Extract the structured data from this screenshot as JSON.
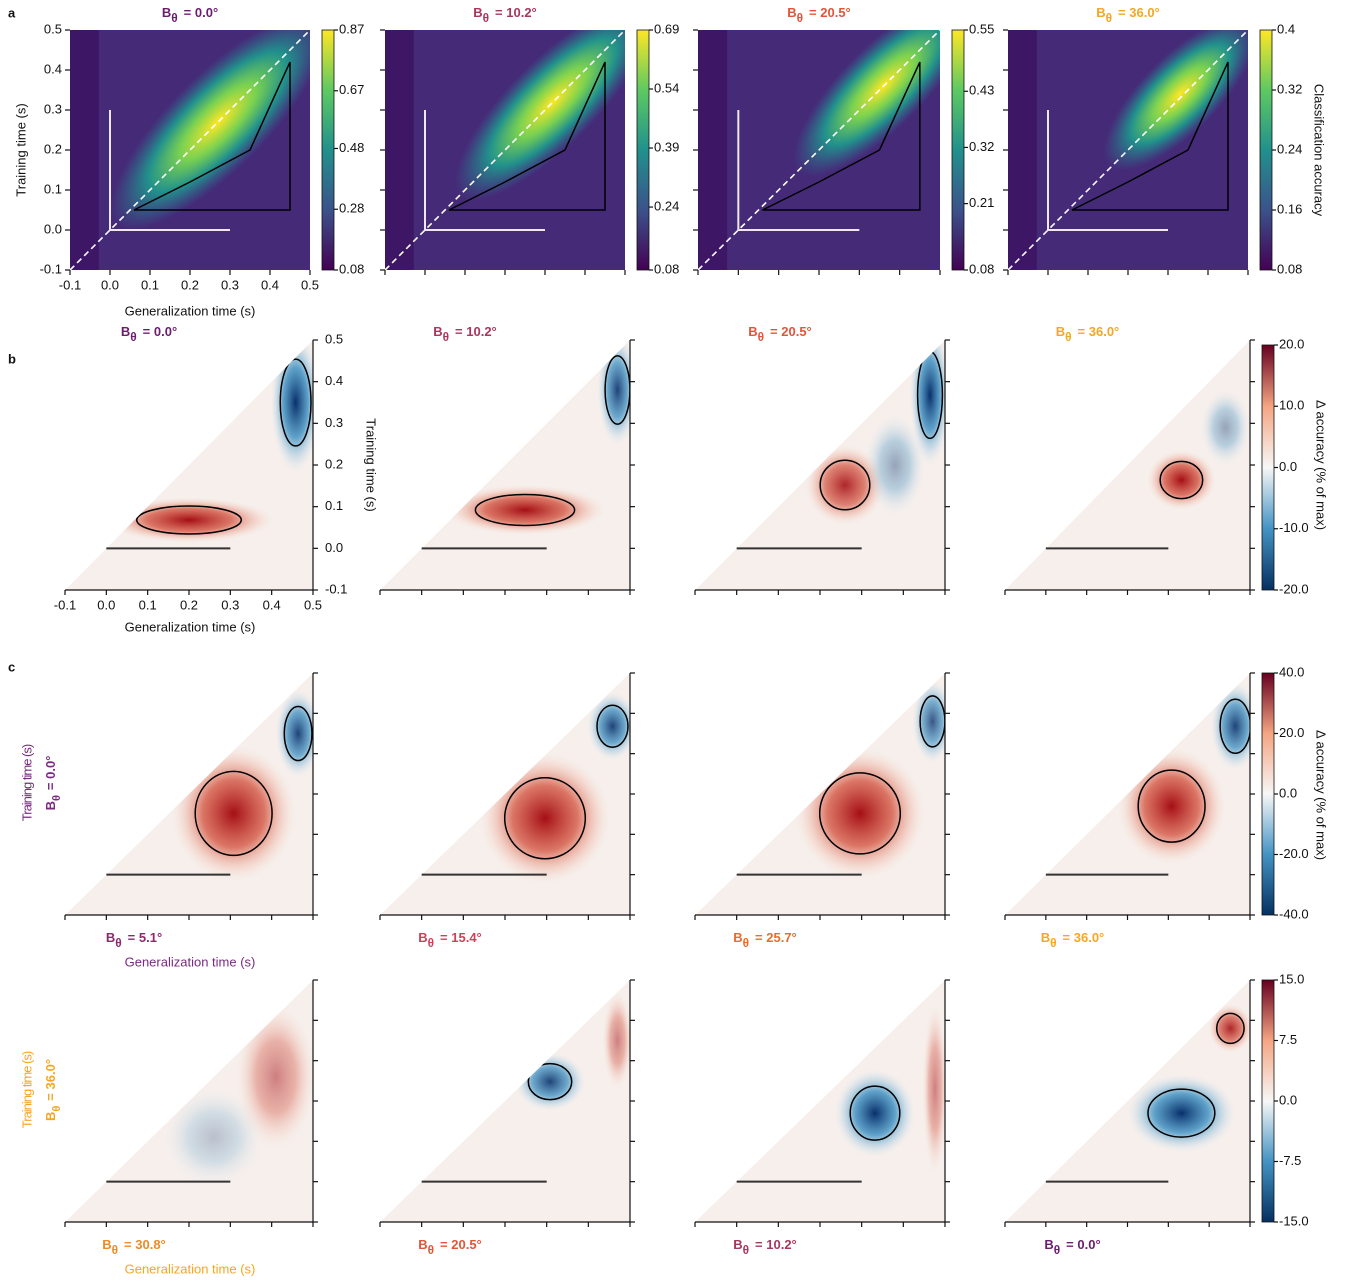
{
  "figure": {
    "panel_labels": [
      "a",
      "b",
      "c"
    ],
    "axis_ticks": [
      -0.1,
      {
        "value": 0,
        "label": "0.0"
      },
      0.1,
      0.2,
      0.3,
      0.4,
      0.5
    ],
    "x_label": "Generalization time (s)",
    "y_label": "Training time (s)",
    "a": {
      "colorbar_label": "Classification accuracy",
      "plots": [
        {
          "title": {
            "symbol": "B",
            "subscript": "θ",
            "value": "= 0.0°"
          },
          "color": "#6b1d6e",
          "colorbar_ticks": [
            0.87,
            0.67,
            0.48,
            0.28,
            0.08
          ]
        },
        {
          "title": {
            "symbol": "B",
            "subscript": "θ",
            "value": "= 10.2°"
          },
          "color": "#a8365e",
          "colorbar_ticks": [
            0.69,
            0.54,
            0.39,
            0.24,
            0.08
          ]
        },
        {
          "title": {
            "symbol": "B",
            "subscript": "θ",
            "value": "= 20.5°"
          },
          "color": "#e2553a",
          "colorbar_ticks": [
            0.55,
            0.43,
            0.32,
            0.21,
            0.08
          ]
        },
        {
          "title": {
            "symbol": "B",
            "subscript": "θ",
            "value": "= 36.0°"
          },
          "color": "#f5a623",
          "colorbar_ticks": [
            0.4,
            0.32,
            0.24,
            0.16,
            0.08
          ]
        }
      ]
    },
    "b": {
      "colorbar_label": "Δ accuracy (% of max)",
      "colorbar_ticks": [
        {
          "value": 20,
          "label": "20.0"
        },
        {
          "value": 10,
          "label": "10.0"
        },
        {
          "value": 0,
          "label": "0.0"
        },
        {
          "value": -10,
          "label": "-10.0"
        },
        {
          "value": -20,
          "label": "-20.0"
        }
      ],
      "plots": [
        {
          "title": {
            "symbol": "B",
            "subscript": "θ",
            "value": "= 0.0°"
          },
          "color": "#6b1d6e"
        },
        {
          "title": {
            "symbol": "B",
            "subscript": "θ",
            "value": "= 10.2°"
          },
          "color": "#a8365e"
        },
        {
          "title": {
            "symbol": "B",
            "subscript": "θ",
            "value": "= 20.5°"
          },
          "color": "#e2553a"
        },
        {
          "title": {
            "symbol": "B",
            "subscript": "θ",
            "value": "= 36.0°"
          },
          "color": "#f5a623"
        }
      ]
    },
    "c": {
      "colorbar_label": "Δ accuracy (% of max)",
      "rows": [
        {
          "label": "Training time (s)",
          "group": {
            "symbol": "B",
            "subscript": "θ",
            "value": "= 0.0°"
          },
          "color": "#7a2a82",
          "colorbar_ticks": [
            {
              "value": 40,
              "label": "40.0"
            },
            {
              "value": 20,
              "label": "20.0"
            },
            {
              "value": 0,
              "label": "0.0"
            },
            {
              "value": -20,
              "label": "-20.0"
            },
            {
              "value": -40,
              "label": "-40.0"
            }
          ],
          "plots": [
            {
              "title": {
                "symbol": "B",
                "subscript": "θ",
                "value": "= 5.1°"
              },
              "color": "#8c2a6c"
            },
            {
              "title": {
                "symbol": "B",
                "subscript": "θ",
                "value": "= 15.4°"
              },
              "color": "#c8445a"
            },
            {
              "title": {
                "symbol": "B",
                "subscript": "θ",
                "value": "= 25.7°"
              },
              "color": "#ea6b2e"
            },
            {
              "title": {
                "symbol": "B",
                "subscript": "θ",
                "value": "= 36.0°"
              },
              "color": "#f5a623"
            }
          ]
        },
        {
          "label": "Training time (s)",
          "group": {
            "symbol": "B",
            "subscript": "θ",
            "value": "= 36.0°"
          },
          "color": "#f5a623",
          "colorbar_ticks": [
            {
              "value": 15,
              "label": "15.0"
            },
            {
              "value": 7.5,
              "label": "7.5"
            },
            {
              "value": 0,
              "label": "0.0"
            },
            {
              "value": -7.5,
              "label": "-7.5"
            },
            {
              "value": -15,
              "label": "-15.0"
            }
          ],
          "plots": [
            {
              "title": {
                "symbol": "B",
                "subscript": "θ",
                "value": "= 30.8°"
              },
              "color": "#f08a25"
            },
            {
              "title": {
                "symbol": "B",
                "subscript": "θ",
                "value": "= 20.5°"
              },
              "color": "#e2553a"
            },
            {
              "title": {
                "symbol": "B",
                "subscript": "θ",
                "value": "= 10.2°"
              },
              "color": "#a8365e"
            },
            {
              "title": {
                "symbol": "B",
                "subscript": "θ",
                "value": "= 0.0°"
              },
              "color": "#6b1d6e"
            }
          ]
        }
      ]
    }
  }
}
